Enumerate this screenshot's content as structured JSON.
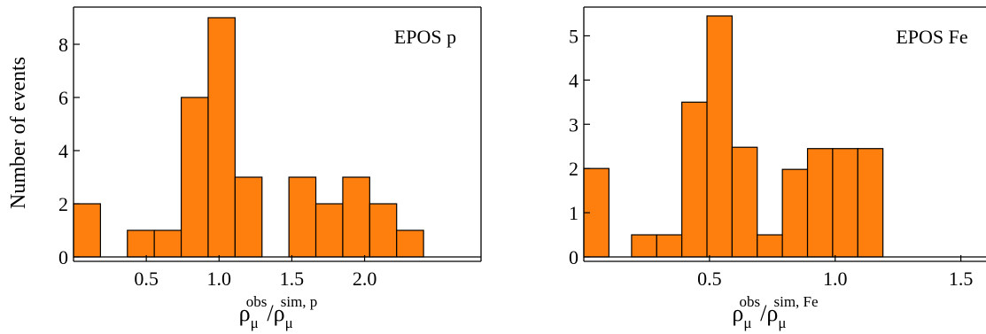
{
  "y_axis_label": "Number of events",
  "colors": {
    "bar_fill": "#FF7F0E",
    "bar_stroke": "#000000",
    "axis": "#000000"
  },
  "chart_data": [
    {
      "type": "bar",
      "label": "EPOS p",
      "xlabel_base": "ρ",
      "xlabel_sub": "μ",
      "xlabel_sup_num": "obs",
      "xlabel_sup_den": "sim, p",
      "xlim": [
        0.0,
        2.8
      ],
      "ylim": [
        0,
        9.4
      ],
      "x_ticks": [
        0.5,
        1.0,
        1.5,
        2.0
      ],
      "x_tick_labels": [
        "0.5",
        "1.0",
        "1.5",
        "2.0"
      ],
      "y_ticks": [
        0,
        2,
        4,
        6,
        8
      ],
      "y_tick_labels": [
        "0",
        "2",
        "4",
        "6",
        "8"
      ],
      "bar_width": 0.185,
      "bars": [
        {
          "x_left": 0.0,
          "value": 2
        },
        {
          "x_left": 0.37,
          "value": 1
        },
        {
          "x_left": 0.555,
          "value": 1
        },
        {
          "x_left": 0.74,
          "value": 6
        },
        {
          "x_left": 0.925,
          "value": 9
        },
        {
          "x_left": 1.11,
          "value": 3
        },
        {
          "x_left": 1.48,
          "value": 3
        },
        {
          "x_left": 1.665,
          "value": 2
        },
        {
          "x_left": 1.85,
          "value": 3
        },
        {
          "x_left": 2.035,
          "value": 2
        },
        {
          "x_left": 2.22,
          "value": 1
        }
      ]
    },
    {
      "type": "bar",
      "label": "EPOS Fe",
      "xlabel_base": "ρ",
      "xlabel_sub": "μ",
      "xlabel_sup_num": "obs",
      "xlabel_sup_den": "sim, Fe",
      "xlim": [
        0.0,
        1.6
      ],
      "ylim": [
        0,
        5.65
      ],
      "x_ticks": [
        0.5,
        1.0,
        1.5
      ],
      "x_tick_labels": [
        "0.5",
        "1.0",
        "1.5"
      ],
      "y_ticks": [
        0,
        1,
        2,
        3,
        4,
        5
      ],
      "y_tick_labels": [
        "0",
        "1",
        "2",
        "3",
        "4",
        "5"
      ],
      "bar_width": 0.1,
      "bars": [
        {
          "x_left": 0.0,
          "value": 2
        },
        {
          "x_left": 0.19,
          "value": 0.5
        },
        {
          "x_left": 0.29,
          "value": 0.5
        },
        {
          "x_left": 0.39,
          "value": 3.5
        },
        {
          "x_left": 0.49,
          "value": 5.45
        },
        {
          "x_left": 0.59,
          "value": 2.48
        },
        {
          "x_left": 0.69,
          "value": 0.5
        },
        {
          "x_left": 0.79,
          "value": 1.98
        },
        {
          "x_left": 0.89,
          "value": 2.45
        },
        {
          "x_left": 0.99,
          "value": 2.45
        },
        {
          "x_left": 1.09,
          "value": 2.45
        }
      ]
    }
  ]
}
